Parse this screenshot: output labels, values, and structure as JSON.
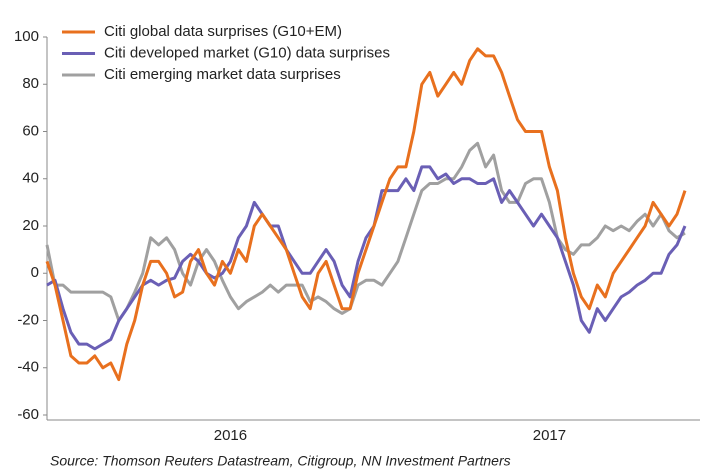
{
  "chart_data": {
    "type": "line",
    "categories": [
      null,
      null,
      null,
      null,
      null,
      null,
      null,
      null,
      null,
      null,
      null,
      null,
      null,
      null,
      null,
      null,
      null,
      null,
      null,
      null,
      null,
      null,
      null,
      "2016",
      null,
      null,
      null,
      null,
      null,
      null,
      null,
      null,
      null,
      null,
      null,
      null,
      null,
      null,
      null,
      null,
      null,
      null,
      null,
      null,
      null,
      null,
      null,
      null,
      null,
      null,
      null,
      null,
      null,
      null,
      null,
      null,
      null,
      null,
      null,
      null,
      null,
      null,
      null,
      "2017",
      null,
      null,
      null,
      null,
      null,
      null,
      null,
      null,
      null,
      null,
      null,
      null,
      null,
      null,
      null,
      null,
      null
    ],
    "series": [
      {
        "name": "Citi global data surprises (G10+EM)",
        "color": "#e8701e",
        "values": [
          5,
          -5,
          -20,
          -35,
          -38,
          -38,
          -35,
          -40,
          -38,
          -45,
          -30,
          -20,
          -5,
          5,
          5,
          0,
          -10,
          -8,
          5,
          10,
          0,
          -5,
          5,
          0,
          10,
          5,
          20,
          25,
          20,
          15,
          10,
          0,
          -10,
          -15,
          0,
          5,
          -5,
          -15,
          -15,
          0,
          10,
          20,
          30,
          40,
          45,
          45,
          60,
          80,
          85,
          75,
          80,
          85,
          80,
          90,
          95,
          92,
          92,
          85,
          75,
          65,
          60,
          60,
          60,
          45,
          35,
          15,
          0,
          -10,
          -15,
          -5,
          -10,
          0,
          5,
          10,
          15,
          20,
          30,
          25,
          20,
          25,
          35
        ]
      },
      {
        "name": "Citi developed market (G10) data surprises",
        "color": "#6a5fb5",
        "values": [
          -5,
          -3,
          -15,
          -25,
          -30,
          -30,
          -32,
          -30,
          -28,
          -20,
          -15,
          -10,
          -5,
          -3,
          -5,
          -3,
          -2,
          5,
          8,
          5,
          0,
          -2,
          0,
          5,
          15,
          20,
          30,
          25,
          20,
          20,
          10,
          5,
          0,
          0,
          5,
          10,
          5,
          -5,
          -10,
          5,
          15,
          20,
          35,
          35,
          35,
          40,
          35,
          45,
          45,
          40,
          42,
          38,
          40,
          40,
          38,
          38,
          40,
          30,
          35,
          30,
          25,
          20,
          25,
          20,
          15,
          5,
          -5,
          -20,
          -25,
          -15,
          -20,
          -15,
          -10,
          -8,
          -5,
          -3,
          0,
          0,
          8,
          12,
          20
        ]
      },
      {
        "name": "Citi emerging market data surprises",
        "color": "#a0a0a0",
        "values": [
          12,
          -5,
          -5,
          -8,
          -8,
          -8,
          -8,
          -8,
          -10,
          -20,
          -15,
          -8,
          0,
          15,
          12,
          15,
          10,
          0,
          -5,
          5,
          10,
          5,
          -3,
          -10,
          -15,
          -12,
          -10,
          -8,
          -5,
          -8,
          -5,
          -5,
          -5,
          -12,
          -10,
          -12,
          -15,
          -17,
          -15,
          -5,
          -3,
          -3,
          -5,
          0,
          5,
          15,
          25,
          35,
          38,
          38,
          40,
          40,
          45,
          52,
          55,
          45,
          50,
          35,
          30,
          30,
          38,
          40,
          40,
          30,
          15,
          10,
          8,
          12,
          12,
          15,
          20,
          18,
          20,
          18,
          22,
          25,
          20,
          25,
          18,
          15,
          17
        ]
      }
    ],
    "ylim": [
      -60,
      100
    ],
    "yticks": [
      -60,
      -40,
      -20,
      0,
      20,
      40,
      60,
      80,
      100
    ],
    "source": "Source: Thomson Reuters Datastream, Citigroup, NN Investment Partners"
  }
}
